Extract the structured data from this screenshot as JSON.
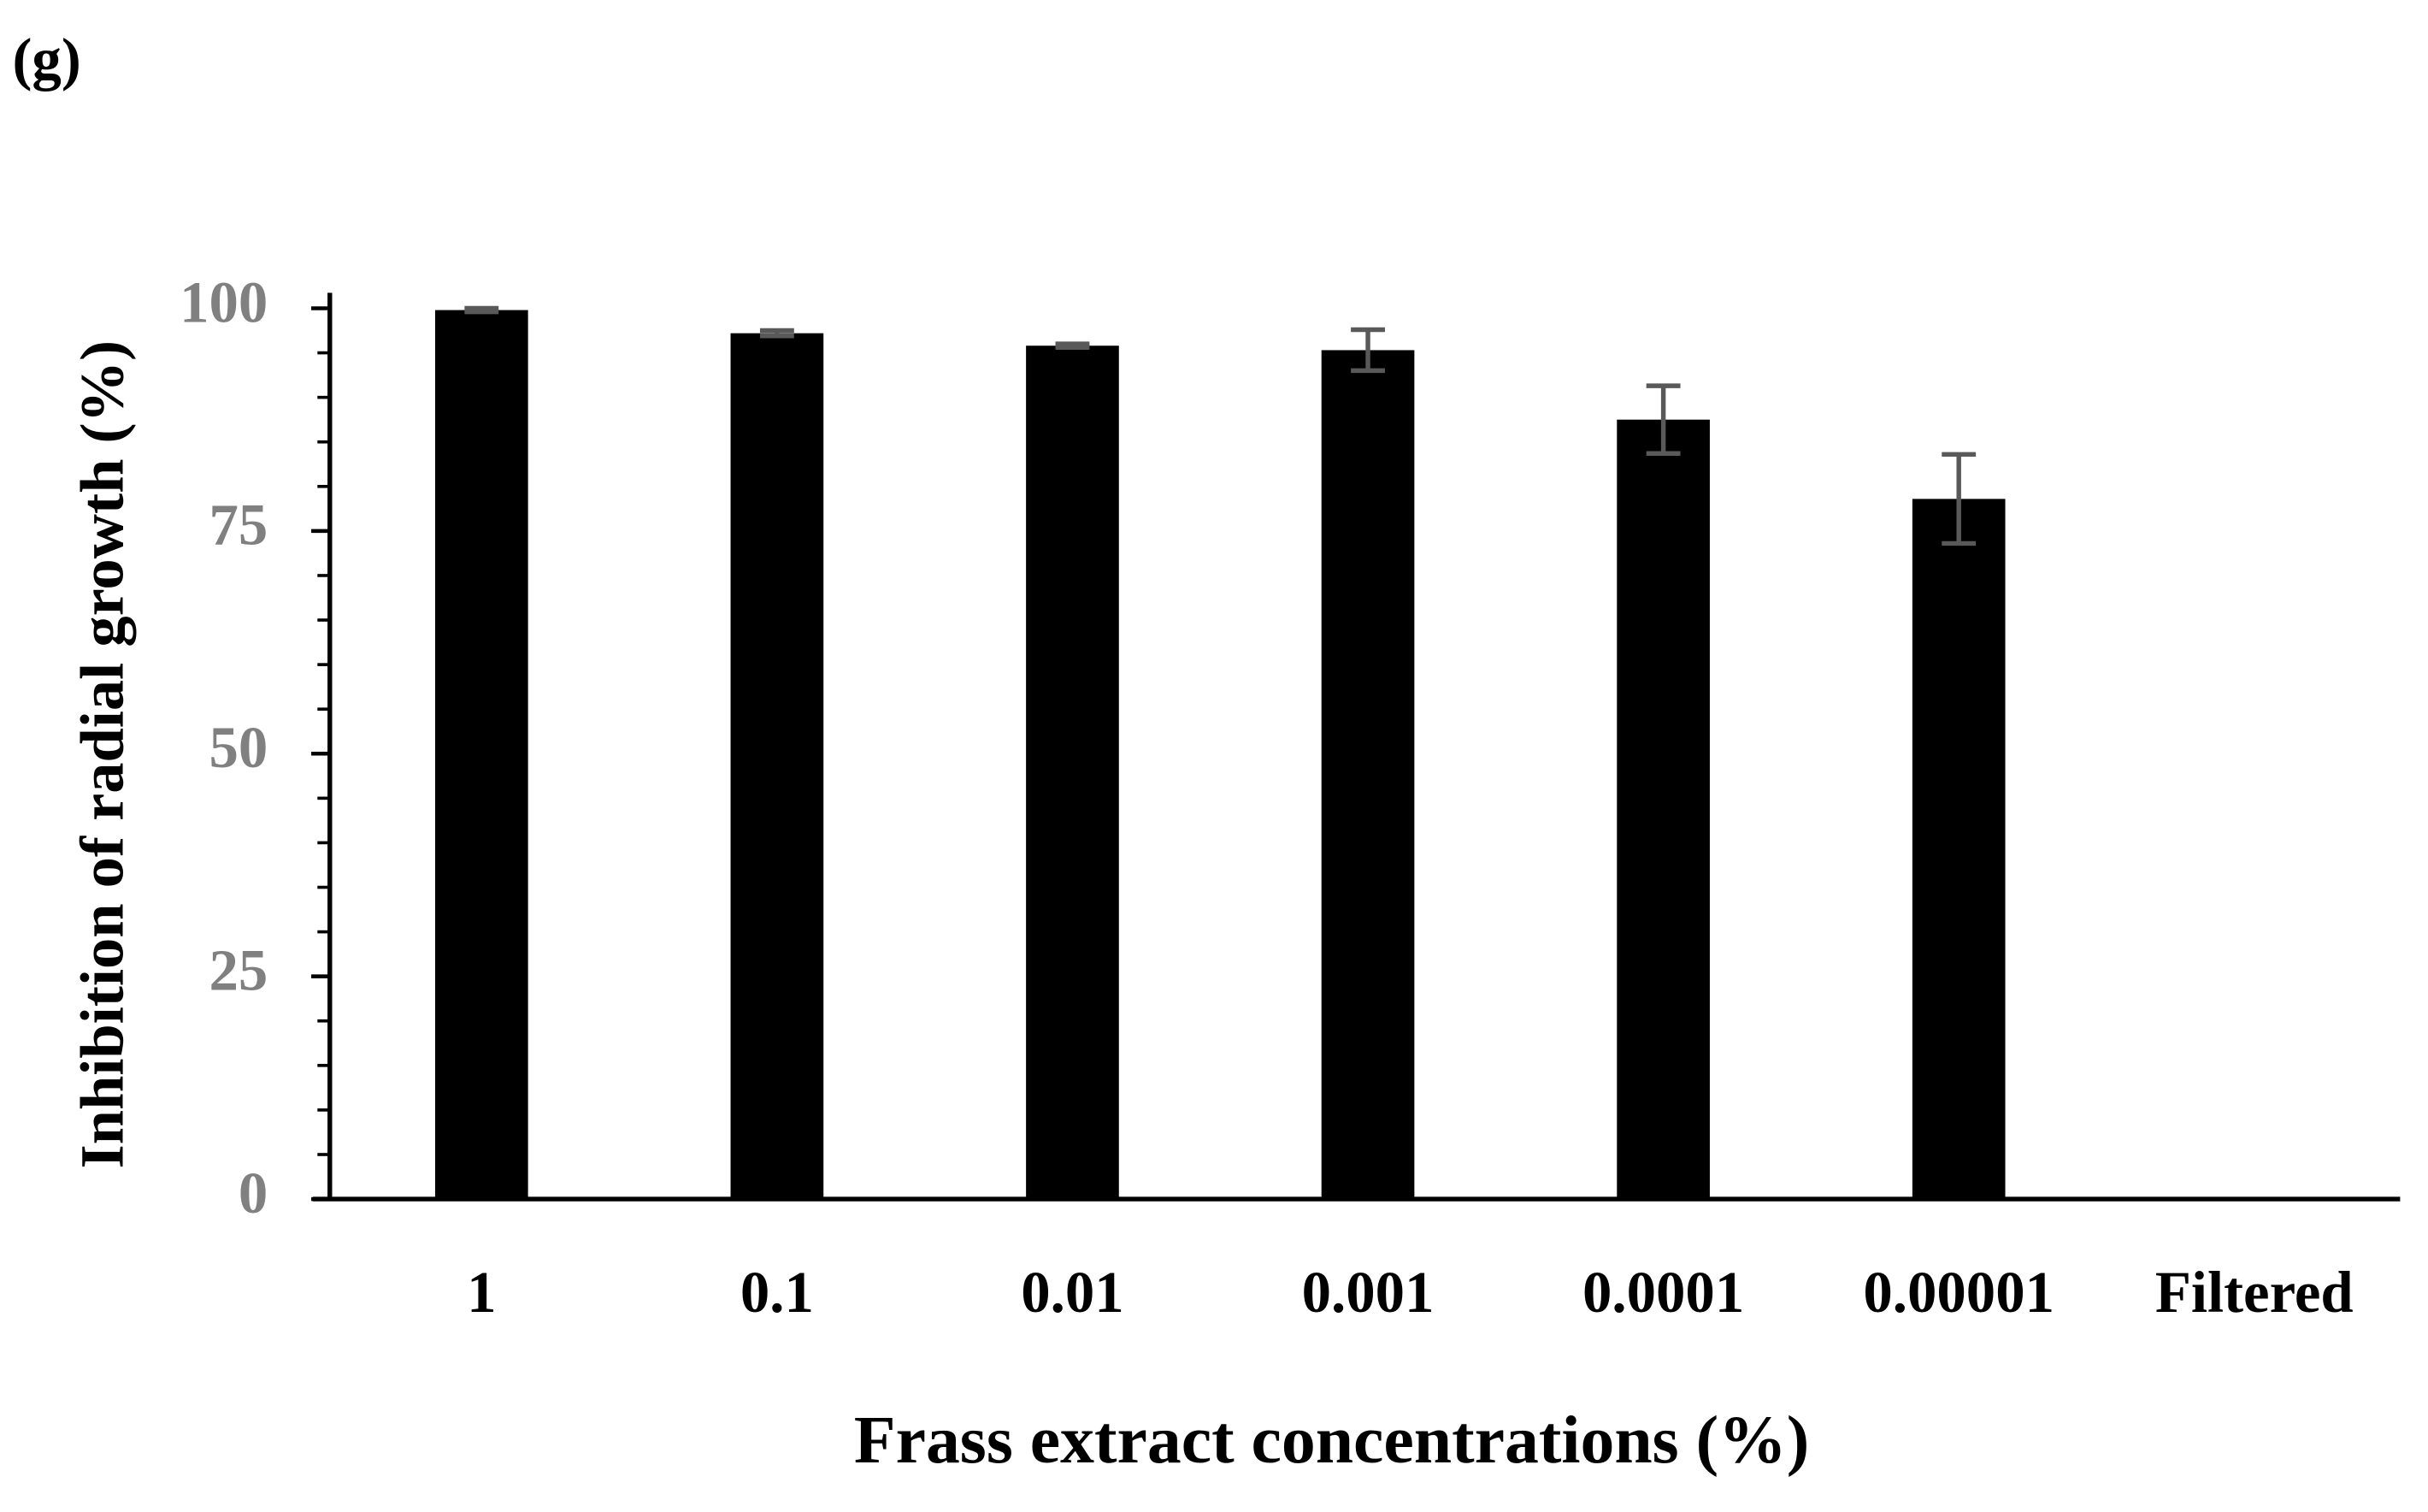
{
  "chart_data": {
    "type": "bar",
    "panel_label": "(g)",
    "x_label": "Frass extract concentrations (%)",
    "y_label": "Inhibition of radial growth (%)",
    "categories": [
      "1",
      "0.1",
      "0.01",
      "0.001",
      "0.0001",
      "0.00001",
      "Filtered"
    ],
    "values": [
      99.8,
      97.2,
      95.8,
      95.3,
      87.5,
      78.6,
      null
    ],
    "errors": [
      0.2,
      0.3,
      0.2,
      2.3,
      3.8,
      5.0,
      null
    ],
    "color": "#000000",
    "error_color": "#595959",
    "tick_label_color": "#808080",
    "ylim": [
      0,
      100
    ],
    "yticks": [
      0,
      25,
      50,
      75,
      100
    ],
    "yminor_ticks": [
      5,
      10,
      15,
      20,
      30,
      35,
      40,
      45,
      55,
      60,
      65,
      70,
      80,
      85,
      90,
      95
    ],
    "grid": false
  }
}
